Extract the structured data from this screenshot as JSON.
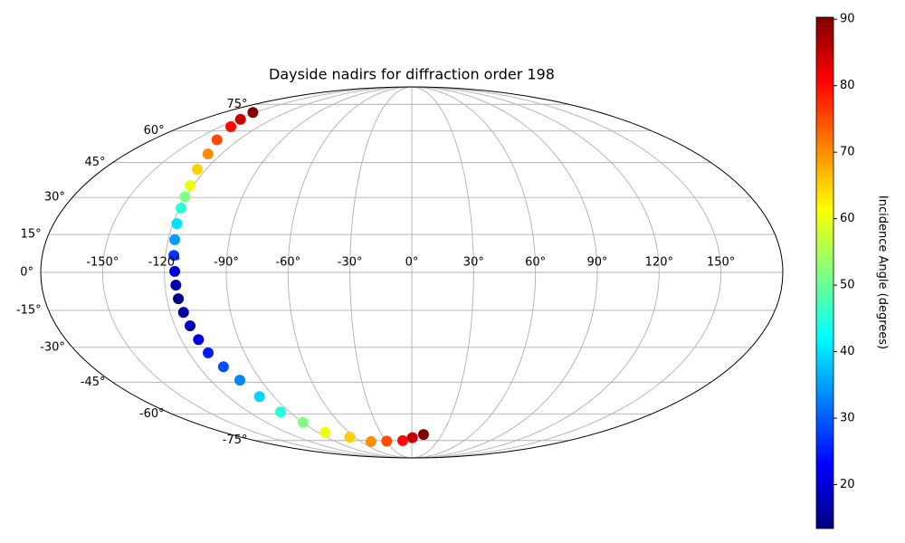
{
  "chart_data": {
    "type": "scatter",
    "projection": "mollweide",
    "title": "Dayside nadirs for diffraction order 198",
    "x": [
      -152.0,
      -146.9,
      -141.8,
      -135.1,
      -128.4,
      -125.1,
      -121.7,
      -120.5,
      -119.3,
      -118.1,
      -116.8,
      -115.9,
      -115.0,
      -114.7,
      -114.4,
      -113.4,
      -112.3,
      -111.0,
      -109.6,
      -106.1,
      -102.5,
      -99.5,
      -96.5,
      -89.7,
      -82.8,
      -65.5,
      -48.2,
      -29.3,
      -10.4,
      0.7,
      11.7
    ],
    "y": [
      70.0,
      66.1,
      62.2,
      55.6,
      48.9,
      42.0,
      35.0,
      30.3,
      25.6,
      19.3,
      12.9,
      6.7,
      0.4,
      -5.0,
      -10.4,
      -15.8,
      -21.2,
      -26.8,
      -32.3,
      -38.2,
      -44.1,
      -51.6,
      -59.0,
      -64.5,
      -70.0,
      -72.9,
      -75.7,
      -75.4,
      -75.1,
      -73.2,
      -71.3
    ],
    "values": [
      90,
      85,
      80,
      75,
      70,
      65,
      60,
      52,
      45,
      40,
      35,
      27,
      20,
      17,
      14,
      16,
      18,
      21,
      25,
      29,
      33,
      39,
      45,
      52,
      60,
      65,
      70,
      75,
      80,
      85,
      90
    ],
    "colormap": "jet",
    "clim": [
      13.4,
      90.3
    ],
    "colorbar_label": "Incidence Angle (degrees)",
    "colorbar_ticks": [
      20,
      30,
      40,
      50,
      60,
      70,
      80,
      90
    ],
    "grid": true,
    "xticks": [
      {
        "value": -150,
        "label": "-150°"
      },
      {
        "value": -120,
        "label": "-120°"
      },
      {
        "value": -90,
        "label": "-90°"
      },
      {
        "value": -60,
        "label": "-60°"
      },
      {
        "value": -30,
        "label": "-30°"
      },
      {
        "value": 0,
        "label": "0°"
      },
      {
        "value": 30,
        "label": "30°"
      },
      {
        "value": 60,
        "label": "60°"
      },
      {
        "value": 90,
        "label": "90°"
      },
      {
        "value": 120,
        "label": "120°"
      },
      {
        "value": 150,
        "label": "150°"
      }
    ],
    "yticks": [
      {
        "value": -75,
        "label": "-75°"
      },
      {
        "value": -60,
        "label": "-60°"
      },
      {
        "value": -45,
        "label": "-45°"
      },
      {
        "value": -30,
        "label": "-30°"
      },
      {
        "value": -15,
        "label": "-15°"
      },
      {
        "value": 0,
        "label": "0°"
      },
      {
        "value": 15,
        "label": "15°"
      },
      {
        "value": 30,
        "label": "30°"
      },
      {
        "value": 45,
        "label": "45°"
      },
      {
        "value": 60,
        "label": "60°"
      },
      {
        "value": 75,
        "label": "75°"
      }
    ]
  }
}
